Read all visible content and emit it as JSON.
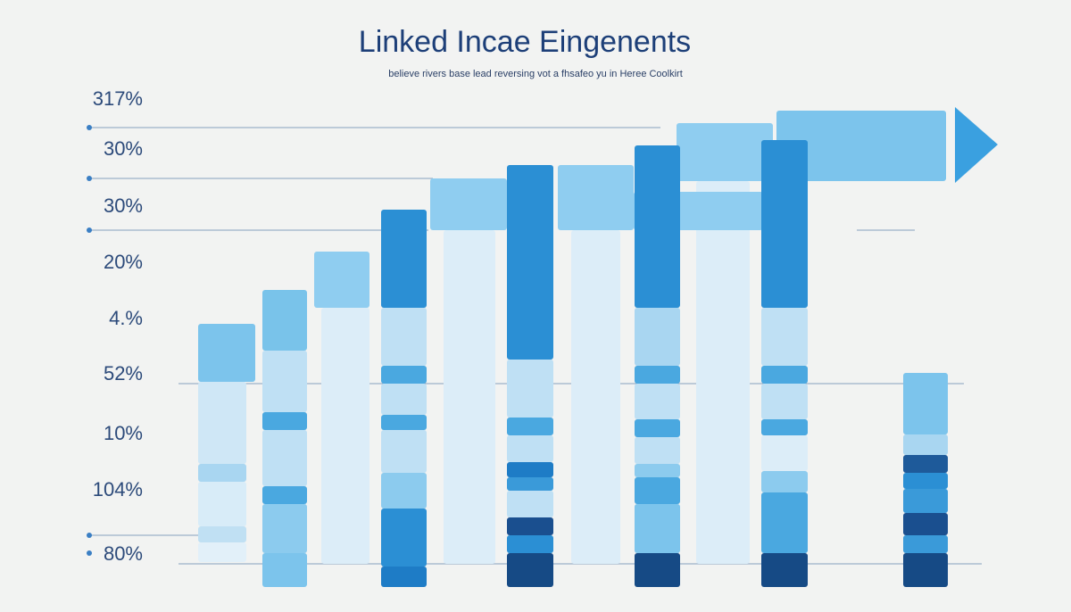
{
  "header": {
    "title": "Linked Incae Eingenents",
    "subtitle": "believe rivers base lead reversing vot a fhsafeo yu in Heree Coolkirt"
  },
  "axis_labels": [
    "317%",
    "30%",
    "30%",
    "20%",
    "4.%",
    "52%",
    "10%",
    "104%",
    "80%"
  ]
}
